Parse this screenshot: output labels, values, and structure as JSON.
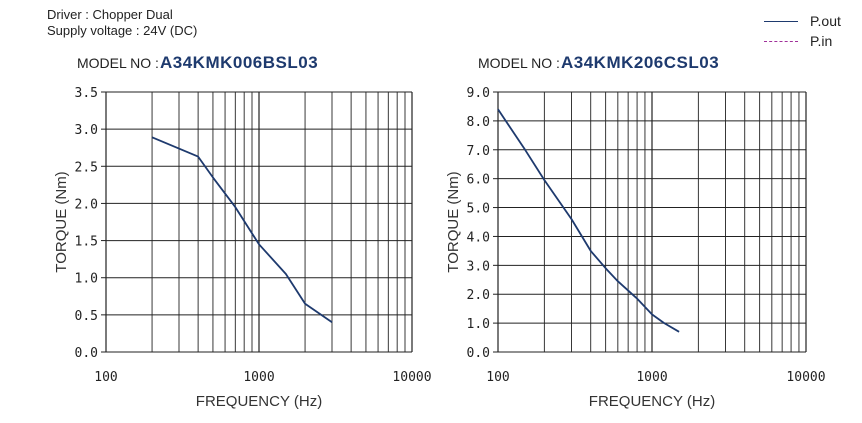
{
  "header": {
    "driver": "Driver : Chopper Dual",
    "supply": "Supply voltage : 24V (DC)"
  },
  "legend": {
    "items": [
      {
        "label": "P.out",
        "color": "#1e3a6e",
        "style": "solid"
      },
      {
        "label": "P.in",
        "color": "#a0309a",
        "style": "dashed"
      }
    ]
  },
  "colors": {
    "curve": "#1e3a6e",
    "grid": "#222222"
  },
  "chart_data": [
    {
      "type": "line",
      "model_prefix": "MODEL NO :",
      "model": "A34KMK006BSL03",
      "xlabel": "FREQUENCY (Hz)",
      "ylabel": "TORQUE (Nm)",
      "x_scale": "log",
      "xlim": [
        100,
        10000
      ],
      "ylim": [
        0,
        3.5
      ],
      "x_tick_labels": [
        "100",
        "1000",
        "10000"
      ],
      "y_ticks": [
        "0.0",
        "0.5",
        "1.0",
        "1.5",
        "2.0",
        "2.5",
        "3.0",
        "3.5"
      ],
      "grid": true,
      "series": [
        {
          "name": "P.out",
          "x": [
            200,
            400,
            500,
            700,
            1000,
            1500,
            2000,
            3000
          ],
          "y": [
            2.89,
            2.63,
            2.35,
            1.95,
            1.45,
            1.05,
            0.65,
            0.4
          ]
        }
      ]
    },
    {
      "type": "line",
      "model_prefix": "MODEL NO :",
      "model": "A34KMK206CSL03",
      "xlabel": "FREQUENCY (Hz)",
      "ylabel": "TORQUE (Nm)",
      "x_scale": "log",
      "xlim": [
        100,
        10000
      ],
      "ylim": [
        0,
        9.0
      ],
      "x_tick_labels": [
        "100",
        "1000",
        "10000"
      ],
      "y_ticks": [
        "0.0",
        "1.0",
        "2.0",
        "3.0",
        "4.0",
        "5.0",
        "6.0",
        "7.0",
        "8.0",
        "9.0"
      ],
      "grid": true,
      "series": [
        {
          "name": "P.out",
          "x": [
            100,
            150,
            200,
            300,
            400,
            500,
            600,
            800,
            1000,
            1200,
            1500
          ],
          "y": [
            8.4,
            7.0,
            5.95,
            4.6,
            3.5,
            2.9,
            2.45,
            1.85,
            1.3,
            1.0,
            0.7
          ]
        }
      ]
    }
  ]
}
